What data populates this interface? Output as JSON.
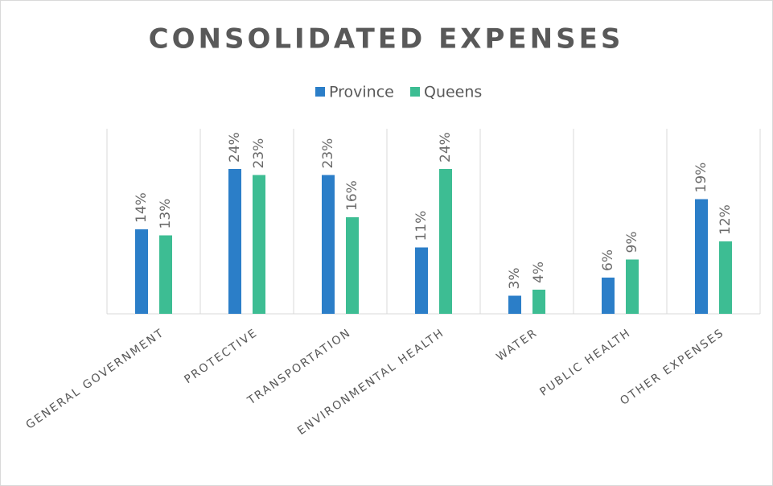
{
  "chart_data": {
    "type": "bar",
    "title": "CONSOLIDATED EXPENSES",
    "categories": [
      "GENERAL GOVERNMENT",
      "PROTECTIVE",
      "TRANSPORTATION",
      "ENVIRONMENTAL HEALTH",
      "WATER",
      "PUBLIC HEALTH",
      "OTHER EXPENSES"
    ],
    "series": [
      {
        "name": "Province",
        "color": "#2b7ec8",
        "values": [
          14,
          24,
          23,
          11,
          3,
          6,
          19
        ],
        "value_labels": [
          "14%",
          "24%",
          "23%",
          "11%",
          "3%",
          "6%",
          "19%"
        ]
      },
      {
        "name": "Queens",
        "color": "#3dbd93",
        "values": [
          13,
          23,
          16,
          24,
          4,
          9,
          12
        ],
        "value_labels": [
          "13%",
          "23%",
          "16%",
          "24%",
          "4%",
          "9%",
          "12%"
        ]
      }
    ],
    "legend": "top"
  }
}
